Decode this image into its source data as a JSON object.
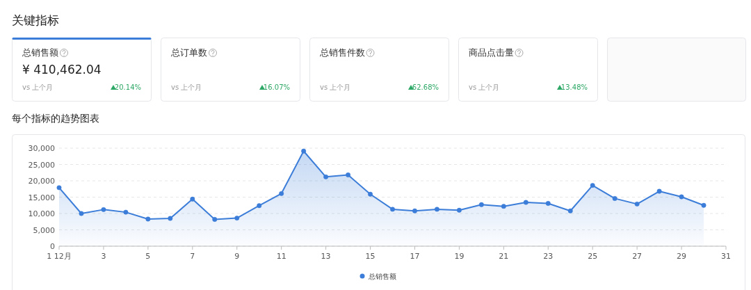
{
  "chart_data": [
    {
      "type": "other",
      "title": "关键指标",
      "categories": [
        "总销售额",
        "总订单数",
        "总销售件数",
        "商品点击量"
      ],
      "value_labels": [
        "¥ 410,462.04",
        null,
        null,
        null
      ],
      "annotations": [
        "vs 上个月",
        "20.14%",
        "vs 上个月",
        "16.07%",
        "vs 上个月",
        "62.68%",
        "vs 上个月",
        "13.48%"
      ]
    },
    {
      "type": "area",
      "title": "每个指标的趋势图表",
      "x": [
        1,
        2,
        3,
        4,
        5,
        6,
        7,
        8,
        9,
        10,
        11,
        12,
        13,
        14,
        15,
        16,
        17,
        18,
        19,
        20,
        21,
        22,
        23,
        24,
        25,
        26,
        27,
        28,
        29,
        30
      ],
      "series": [
        {
          "name": "总销售额",
          "color": "#3b7dd8",
          "values": [
            17900,
            10000,
            11200,
            10400,
            8300,
            8500,
            14400,
            8200,
            8600,
            12400,
            16100,
            29100,
            21200,
            21800,
            15900,
            11300,
            10800,
            11300,
            11000,
            12700,
            12200,
            13400,
            13100,
            10800,
            18600,
            14600,
            12900,
            16800,
            15100,
            12500
          ]
        }
      ],
      "xlim": [
        1,
        31
      ],
      "xticks": [
        {
          "value": 1,
          "label": "1 12月"
        },
        3,
        5,
        7,
        9,
        11,
        13,
        15,
        17,
        19,
        21,
        23,
        25,
        27,
        29,
        31
      ],
      "ylim": [
        0,
        30000
      ],
      "yticks": [
        {
          "value": 0,
          "label": "0"
        },
        {
          "value": 5000,
          "label": "5,000"
        },
        {
          "value": 10000,
          "label": "10,000"
        },
        {
          "value": 15000,
          "label": "15,000"
        },
        {
          "value": 20000,
          "label": "20,000"
        },
        {
          "value": 25000,
          "label": "25,000"
        },
        {
          "value": 30000,
          "label": "30,000"
        }
      ],
      "grid": "y",
      "marker": "circle",
      "legend": "bottom"
    }
  ]
}
